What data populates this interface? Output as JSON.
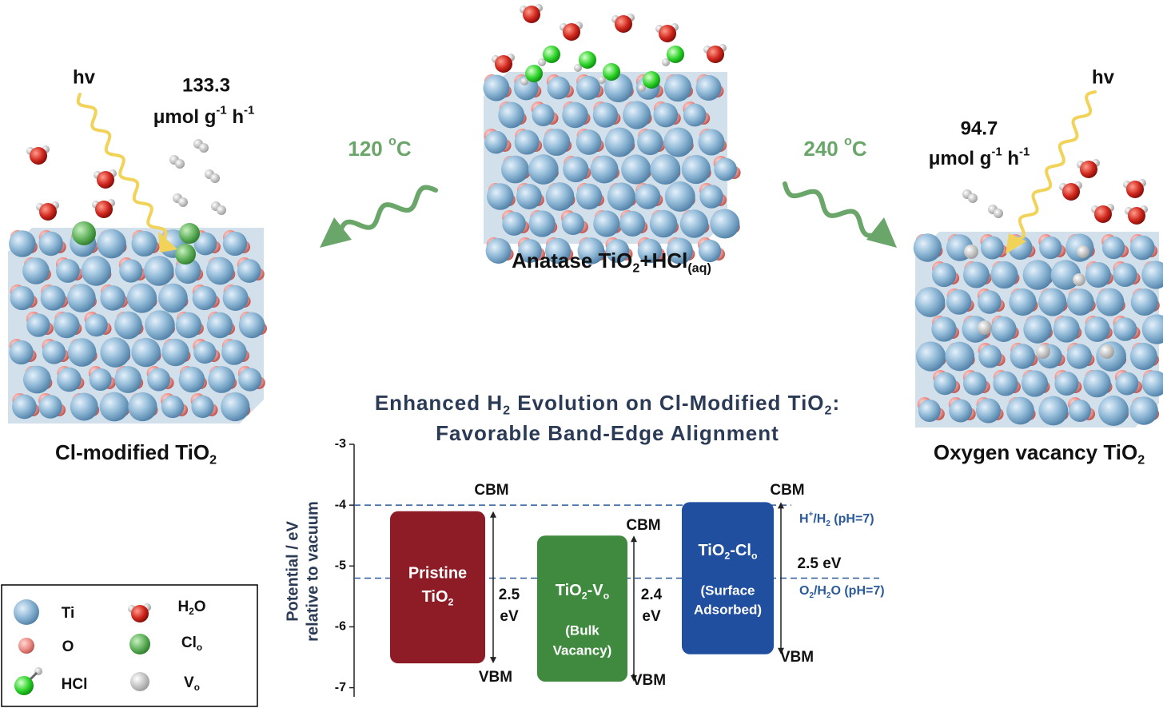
{
  "panels": {
    "left": {
      "hv": "hv",
      "rate": "133.3",
      "unit": [
        "μmol g",
        {
          "sup": "-1"
        },
        " h",
        {
          "sup": "-1"
        }
      ],
      "label": [
        "Cl-modified TiO",
        {
          "sub": "2"
        }
      ]
    },
    "center": {
      "label": [
        "Anatase TiO",
        {
          "sub": "2"
        },
        "+HCl",
        {
          "sub": "(aq)"
        }
      ]
    },
    "right": {
      "hv": "hv",
      "rate": "94.7",
      "unit": [
        "μmol g",
        {
          "sup": "-1"
        },
        " h",
        {
          "sup": "-1"
        }
      ],
      "label": [
        "Oxygen vacancy TiO",
        {
          "sub": "2"
        }
      ]
    }
  },
  "arrows": {
    "left": [
      "120 ",
      {
        "sup": "o"
      },
      "C"
    ],
    "right": [
      "240 ",
      {
        "sup": "o"
      },
      "C"
    ]
  },
  "legend": [
    "Ti",
    "O",
    "HCl",
    [
      "H",
      {
        "sub": "2"
      },
      "O"
    ],
    [
      "Cl",
      {
        "sub": "o"
      }
    ],
    [
      "V",
      {
        "sub": "o"
      }
    ]
  ],
  "chart_data": {
    "type": "band",
    "title": [
      "Enhanced H",
      {
        "sub": "2"
      },
      " Evolution on Cl-Modified TiO",
      {
        "sub": "2"
      },
      ":"
    ],
    "subtitle": "Favorable Band-Edge Alignment",
    "y_label": [
      "Potential / eV",
      "relative to vacuum"
    ],
    "ylim": [
      -7.15,
      -3
    ],
    "yticks": [
      -3,
      -4,
      -5,
      -6,
      -7
    ],
    "cbm_label": "CBM",
    "vbm_label": "VBM",
    "bands": [
      {
        "lines": [
          "Pristine",
          [
            "TiO",
            {
              "sub": "2"
            }
          ]
        ],
        "cbm": -4.1,
        "vbm": -6.6,
        "gap_label": [
          "2.5",
          "eV"
        ],
        "color": "#8e1c26"
      },
      {
        "lines": [
          [
            "TiO",
            {
              "sub": "2"
            },
            "-V",
            {
              "sub": "o"
            }
          ],
          "(Bulk",
          "Vacancy)"
        ],
        "cbm": -4.5,
        "vbm": -6.9,
        "gap_label": [
          "2.4",
          "eV"
        ],
        "color": "#3f8a3f"
      },
      {
        "lines": [
          [
            "TiO",
            {
              "sub": "2"
            },
            "-Cl",
            {
              "sub": "o"
            }
          ],
          "(Surface",
          "Adsorbed)"
        ],
        "cbm": -3.95,
        "vbm": -6.45,
        "gap_label": [
          "2.5 eV"
        ],
        "color": "#1f4f9e"
      }
    ],
    "references": [
      {
        "name": [
          "H",
          {
            "sup": "+"
          },
          "/H",
          {
            "sub": "2"
          },
          " (pH=7)"
        ],
        "value": -4.0
      },
      {
        "name": [
          "O",
          {
            "sub": "2"
          },
          "/H",
          {
            "sub": "2"
          },
          "O (pH=7)"
        ],
        "value": -5.2
      }
    ],
    "reference_color": "#2b5a9a"
  }
}
